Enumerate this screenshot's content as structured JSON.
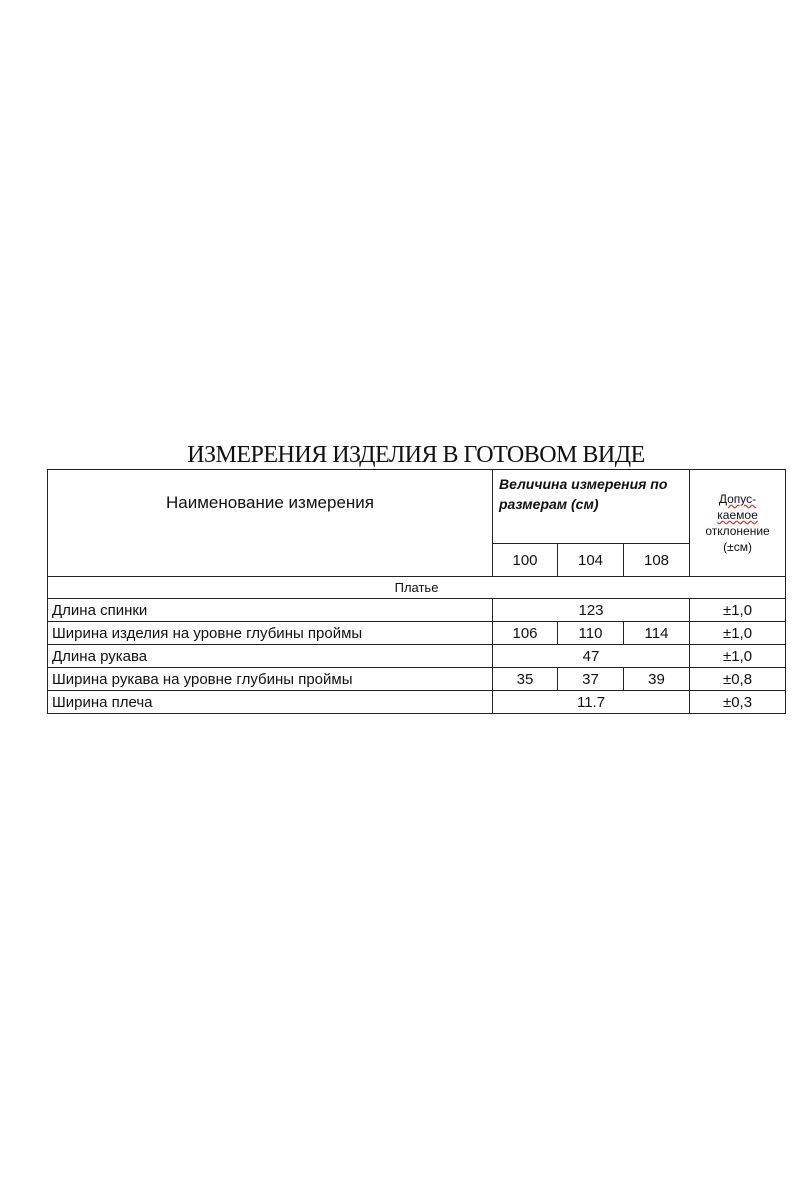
{
  "title": "ИЗМЕРЕНИЯ ИЗДЕЛИЯ В ГОТОВОМ ВИДЕ",
  "header": {
    "name_col": "Наименование измерения",
    "values_col": "Величина измерения по размерам (см)",
    "tolerance_col": [
      "Допус-",
      "каемое",
      "отклонение",
      "(±см)"
    ],
    "sizes": [
      "100",
      "104",
      "108"
    ]
  },
  "section": "Платье",
  "rows": [
    {
      "name": "Длина спинки",
      "values": [
        "123"
      ],
      "tolerance": "±1,0"
    },
    {
      "name": "Ширина изделия на уровне глубины проймы",
      "values": [
        "106",
        "110",
        "114"
      ],
      "tolerance": "±1,0"
    },
    {
      "name": "Длина рукава",
      "values": [
        "47"
      ],
      "tolerance": "±1,0"
    },
    {
      "name": "Ширина рукава на уровне глубины проймы",
      "values": [
        "35",
        "37",
        "39"
      ],
      "tolerance": "±0,8"
    },
    {
      "name": "Ширина плеча",
      "values": [
        "11.7"
      ],
      "tolerance": "±0,3"
    }
  ]
}
